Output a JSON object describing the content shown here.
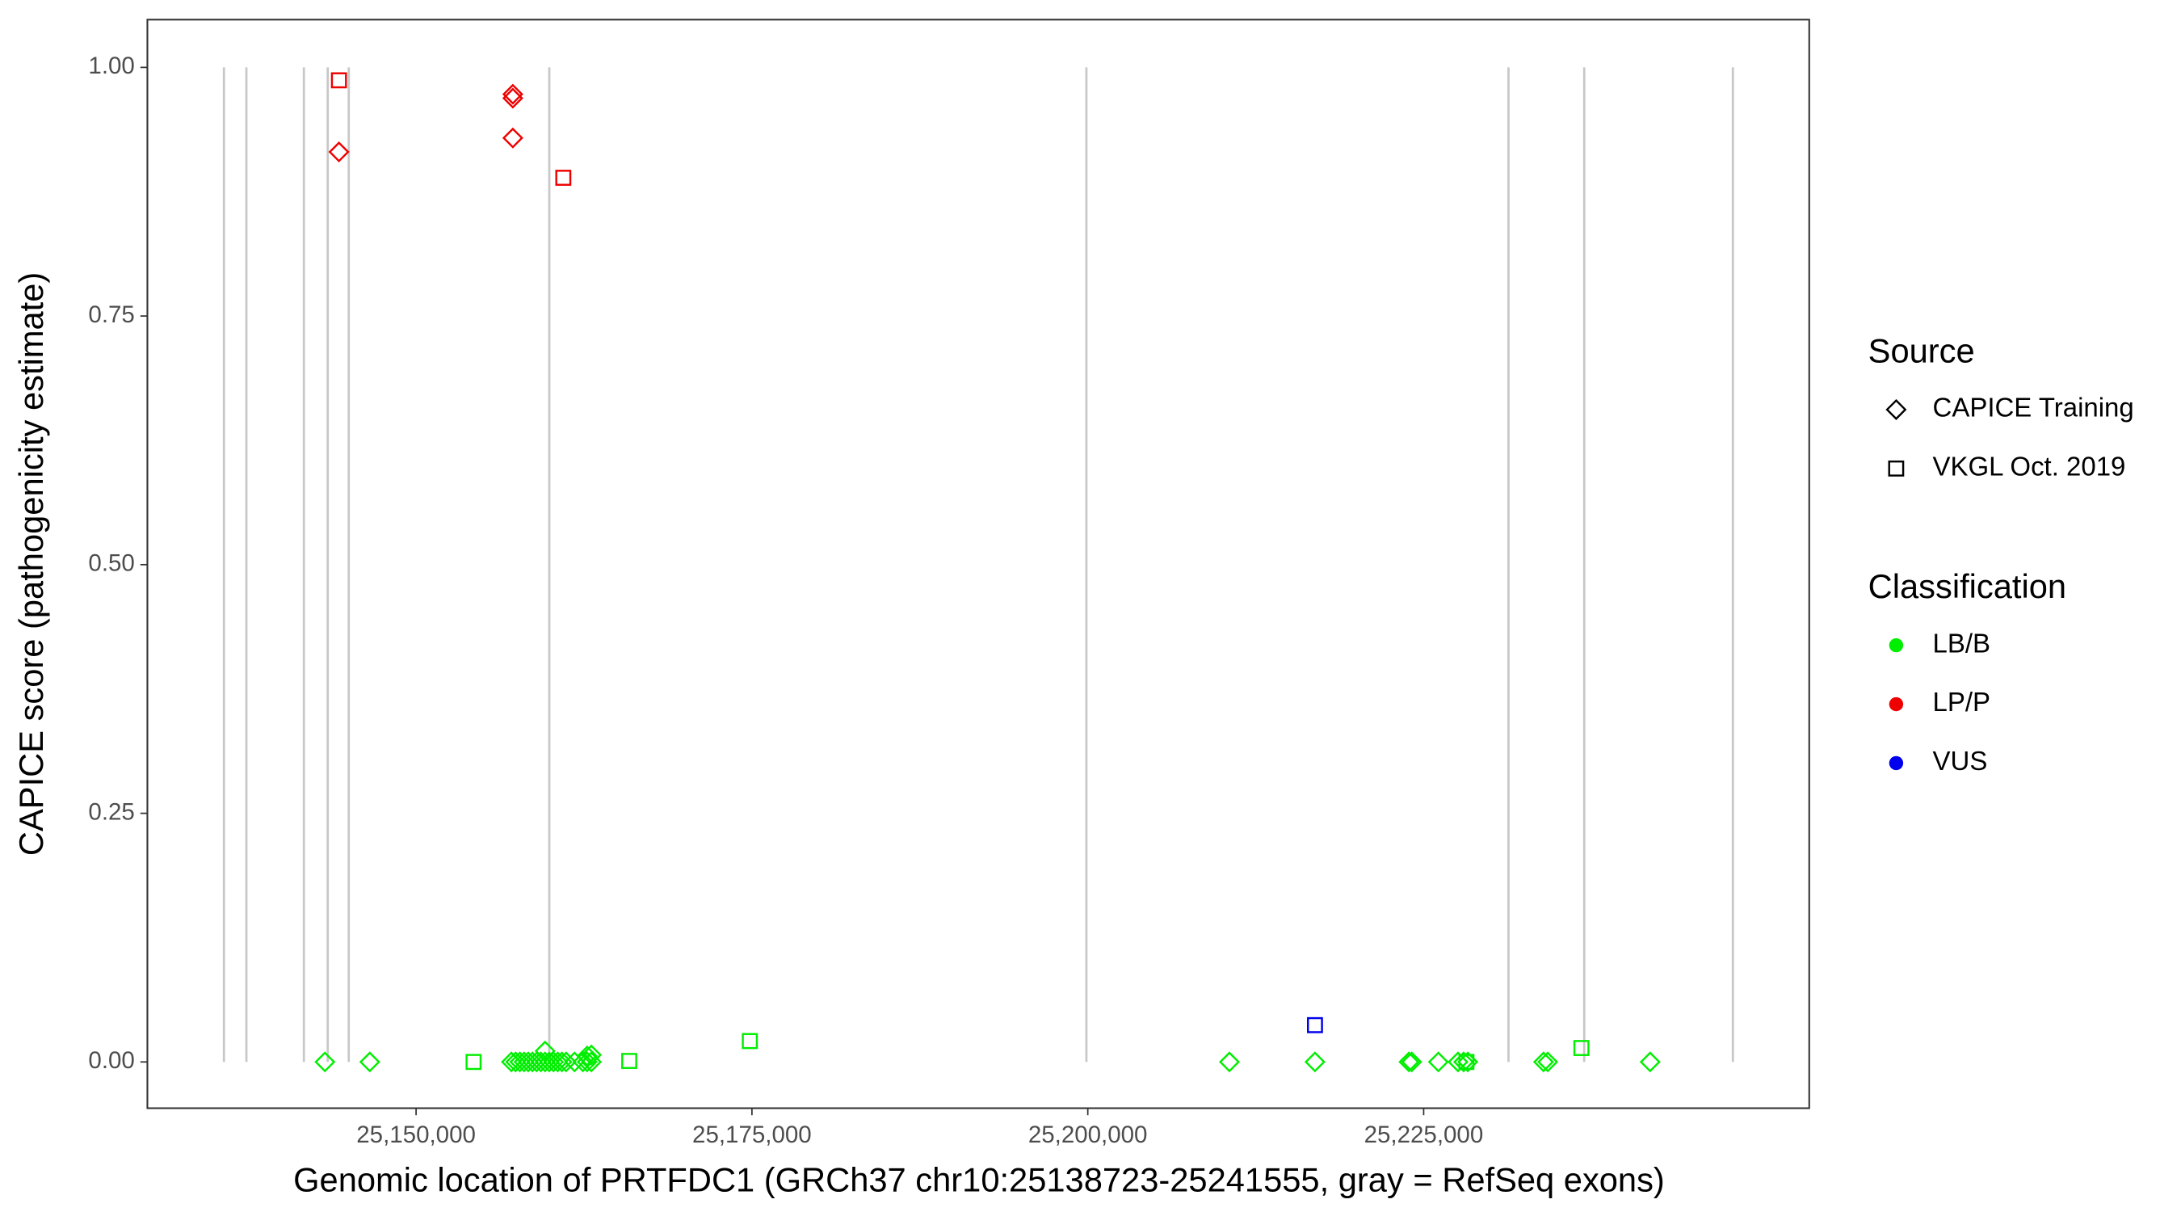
{
  "chart_data": {
    "type": "scatter",
    "xlabel": "Genomic location of PRTFDC1 (GRCh37 chr10:25138723-25241555, gray = RefSeq exons)",
    "ylabel": "CAPICE score (pathogenicity estimate)",
    "xlim": [
      25130000,
      25253700
    ],
    "ylim": [
      -0.0465,
      1.048
    ],
    "xticks": [
      {
        "value": 25150000,
        "label": "25,150,000"
      },
      {
        "value": 25175000,
        "label": "25,175,000"
      },
      {
        "value": 25200000,
        "label": "25,200,000"
      },
      {
        "value": 25225000,
        "label": "25,225,000"
      }
    ],
    "yticks": [
      {
        "value": 0,
        "label": "0.00"
      },
      {
        "value": 0.25,
        "label": "0.25"
      },
      {
        "value": 0.5,
        "label": "0.50"
      },
      {
        "value": 0.75,
        "label": "0.75"
      },
      {
        "value": 1,
        "label": "1.00"
      }
    ],
    "exons": [
      25135699,
      25137370,
      25141649,
      25143424,
      25144990,
      25159916,
      25199896,
      25231315,
      25236952,
      25248017
    ],
    "exon_color": "#c8c8c8",
    "legend": {
      "shape_title": "Source",
      "shapes": [
        {
          "name": "CAPICE Training",
          "shape": "diamond"
        },
        {
          "name": "VKGL Oct. 2019",
          "shape": "square"
        }
      ],
      "color_title": "Classification",
      "colors": [
        {
          "name": "LB/B",
          "color": "#00ee00"
        },
        {
          "name": "LP/P",
          "color": "#ee0000"
        },
        {
          "name": "VUS",
          "color": "#0000ee"
        }
      ]
    },
    "series": [
      {
        "source": "CAPICE Training",
        "classification": "LB/B",
        "x": [
          25143215,
          25146555,
          25157098,
          25157411,
          25157724,
          25158038,
          25158351,
          25158664,
          25158977,
          25159290,
          25159603,
          25159916,
          25160230,
          25160543,
          25160856,
          25161169,
          25161795,
          25162422,
          25162735,
          25163048,
          25210543,
          25216910,
          25223904,
          25224113,
          25226096,
          25227557,
          25227975,
          25228288,
          25233925,
          25234238,
          25241858,
          25159603,
          25162735,
          25163048
        ],
        "values": [
          0,
          0,
          0,
          0,
          0,
          0,
          0,
          0,
          0,
          0,
          0,
          0,
          0,
          0,
          0,
          0,
          0,
          0,
          0,
          0,
          0,
          0,
          0,
          0,
          0,
          0,
          0,
          0,
          0,
          0,
          0,
          0.011,
          0.006,
          0.007
        ]
      },
      {
        "source": "CAPICE Training",
        "classification": "LP/P",
        "x": [
          25144259,
          25157202,
          25157202,
          25157202
        ],
        "values": [
          0.915,
          0.973,
          0.969,
          0.929
        ]
      },
      {
        "source": "VKGL Oct. 2019",
        "classification": "LB/B",
        "x": [
          25154280,
          25165866,
          25174843,
          25236743,
          25228184
        ],
        "values": [
          0,
          0.001,
          0.021,
          0.014,
          0
        ]
      },
      {
        "source": "VKGL Oct. 2019",
        "classification": "LP/P",
        "x": [
          25144259,
          25160960
        ],
        "values": [
          0.987,
          0.889
        ]
      },
      {
        "source": "VKGL Oct. 2019",
        "classification": "VUS",
        "x": [
          25216910
        ],
        "values": [
          0.037
        ]
      }
    ]
  }
}
